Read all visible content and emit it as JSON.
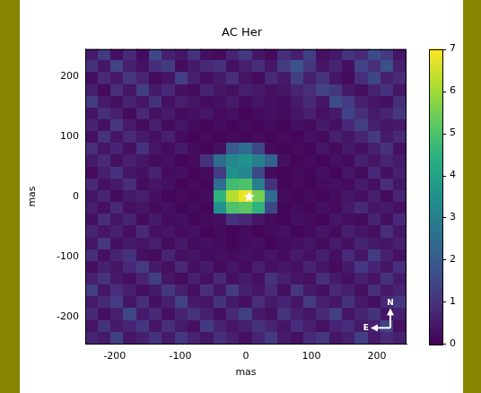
{
  "chart_data": {
    "type": "heatmap",
    "title": "AC Her",
    "x_label": "mas",
    "y_label": "mas",
    "xlim": [
      -245,
      245
    ],
    "ylim": [
      -245,
      245
    ],
    "xticks": [
      -200,
      -100,
      0,
      100,
      200
    ],
    "yticks": [
      -200,
      -100,
      0,
      100,
      200
    ],
    "grid": false,
    "x": [
      -235.2,
      -215.6,
      -196,
      -176.4,
      -156.8,
      -137.2,
      -117.6,
      -98,
      -78.4,
      -58.8,
      -39.2,
      -19.6,
      0,
      19.6,
      39.2,
      58.8,
      78.4,
      98,
      117.6,
      137.2,
      156.8,
      176.4,
      196,
      215.6,
      235.2
    ],
    "y": [
      235.2,
      215.6,
      196,
      176.4,
      156.8,
      137.2,
      117.6,
      98,
      78.4,
      58.8,
      39.2,
      19.6,
      0,
      -19.6,
      -39.2,
      -58.8,
      -78.4,
      -98,
      -117.6,
      -137.2,
      -156.8,
      -176.4,
      -196,
      -215.6,
      -235.2
    ],
    "z": [
      [
        0.5,
        1.2,
        0.3,
        0.8,
        0.2,
        1.5,
        0.6,
        0.4,
        1.0,
        0.3,
        0.2,
        0.7,
        1.1,
        0.4,
        0.2,
        0.9,
        0.6,
        1.3,
        0.3,
        0.5,
        1.0,
        0.8,
        1.6,
        1.2,
        0.4
      ],
      [
        1.0,
        0.4,
        1.4,
        0.6,
        0.3,
        0.9,
        1.2,
        0.2,
        0.5,
        0.8,
        1.0,
        0.3,
        0.6,
        0.9,
        0.4,
        1.2,
        1.8,
        1.1,
        0.4,
        0.7,
        0.3,
        1.4,
        0.9,
        1.7,
        0.6
      ],
      [
        0.3,
        0.8,
        0.5,
        1.1,
        0.7,
        0.2,
        0.4,
        1.3,
        0.6,
        0.3,
        0.5,
        0.9,
        0.4,
        0.2,
        0.8,
        0.5,
        1.3,
        0.6,
        1.0,
        0.4,
        0.2,
        0.9,
        1.5,
        0.6,
        0.8
      ],
      [
        0.6,
        0.2,
        0.9,
        0.4,
        1.3,
        0.5,
        0.8,
        0.3,
        0.2,
        0.7,
        0.4,
        0.3,
        0.6,
        0.5,
        0.3,
        0.4,
        0.7,
        0.9,
        1.4,
        1.1,
        0.5,
        0.3,
        0.7,
        1.0,
        0.4
      ],
      [
        1.2,
        0.5,
        0.3,
        0.7,
        0.4,
        1.0,
        0.3,
        0.6,
        0.4,
        0.2,
        0.3,
        0.5,
        0.2,
        0.4,
        0.3,
        0.2,
        0.5,
        0.8,
        0.4,
        1.6,
        1.2,
        0.6,
        0.4,
        0.3,
        0.9
      ],
      [
        0.4,
        0.9,
        0.6,
        0.2,
        0.8,
        0.3,
        0.5,
        0.2,
        0.3,
        0.4,
        0.2,
        0.3,
        0.1,
        0.2,
        0.3,
        0.2,
        0.4,
        0.6,
        0.3,
        0.5,
        1.4,
        0.9,
        0.5,
        0.7,
        1.1
      ],
      [
        0.7,
        0.3,
        1.1,
        0.5,
        0.2,
        0.6,
        0.2,
        0.4,
        0.2,
        0.1,
        0.2,
        0.1,
        0.2,
        0.1,
        0.2,
        0.1,
        0.3,
        0.2,
        0.5,
        0.3,
        0.8,
        1.3,
        0.6,
        0.4,
        0.5
      ],
      [
        0.3,
        1.0,
        0.4,
        0.8,
        0.5,
        0.3,
        0.6,
        0.2,
        0.1,
        0.2,
        0.1,
        0.2,
        0.1,
        0.2,
        0.1,
        0.2,
        0.1,
        0.3,
        0.2,
        0.6,
        0.4,
        0.7,
        1.2,
        0.5,
        0.8
      ],
      [
        0.9,
        0.4,
        0.7,
        0.3,
        1.0,
        0.4,
        0.2,
        0.5,
        0.2,
        0.1,
        0.3,
        2.0,
        2.5,
        1.5,
        0.2,
        0.1,
        0.2,
        0.1,
        0.4,
        0.2,
        0.5,
        0.3,
        0.6,
        1.0,
        0.3
      ],
      [
        0.5,
        0.8,
        0.3,
        0.6,
        0.4,
        0.2,
        0.3,
        0.1,
        0.2,
        1.0,
        2.5,
        3.2,
        3.5,
        3.0,
        2.2,
        0.3,
        0.1,
        0.2,
        0.1,
        0.3,
        0.2,
        0.6,
        0.4,
        0.7,
        0.5
      ],
      [
        0.2,
        0.6,
        1.0,
        0.4,
        0.3,
        0.7,
        0.2,
        0.3,
        0.1,
        0.2,
        1.2,
        3.5,
        3.2,
        1.5,
        0.2,
        0.1,
        0.2,
        0.1,
        0.3,
        0.1,
        0.4,
        0.2,
        0.8,
        0.3,
        0.6
      ],
      [
        0.8,
        0.3,
        0.5,
        0.9,
        0.2,
        0.4,
        0.3,
        0.1,
        0.2,
        0.1,
        2.5,
        4.8,
        5.0,
        3.0,
        1.0,
        0.1,
        0.2,
        0.1,
        0.2,
        0.3,
        0.2,
        0.5,
        0.3,
        0.9,
        0.4
      ],
      [
        0.4,
        0.7,
        0.2,
        0.5,
        0.6,
        0.3,
        0.1,
        0.2,
        0.1,
        0.2,
        4.5,
        6.2,
        6.8,
        5.5,
        2.5,
        0.2,
        0.1,
        0.2,
        0.1,
        0.2,
        0.4,
        0.3,
        0.6,
        0.2,
        0.7
      ],
      [
        0.6,
        0.3,
        0.8,
        0.3,
        0.4,
        0.2,
        0.3,
        0.1,
        0.2,
        0.1,
        3.5,
        5.0,
        5.2,
        4.5,
        1.5,
        0.1,
        0.2,
        0.1,
        0.3,
        0.2,
        0.5,
        0.8,
        0.4,
        0.5,
        0.3
      ],
      [
        0.3,
        0.9,
        0.4,
        0.7,
        0.2,
        0.5,
        0.2,
        0.3,
        0.1,
        0.2,
        0.3,
        1.0,
        0.8,
        0.4,
        0.2,
        0.1,
        0.3,
        0.2,
        0.1,
        0.4,
        0.3,
        0.2,
        0.7,
        0.3,
        0.8
      ],
      [
        0.7,
        0.4,
        0.6,
        0.3,
        0.8,
        0.3,
        0.4,
        0.2,
        0.3,
        0.1,
        0.2,
        0.1,
        0.2,
        0.1,
        0.2,
        0.3,
        0.1,
        0.2,
        0.4,
        0.2,
        0.6,
        0.4,
        0.3,
        0.9,
        0.4
      ],
      [
        0.4,
        1.1,
        0.3,
        0.5,
        0.4,
        0.6,
        0.2,
        0.5,
        0.2,
        0.3,
        0.2,
        0.1,
        0.2,
        0.3,
        0.1,
        0.2,
        0.3,
        0.4,
        0.2,
        0.5,
        0.3,
        0.7,
        0.5,
        0.4,
        0.6
      ],
      [
        0.9,
        0.3,
        0.7,
        1.0,
        0.3,
        0.2,
        0.7,
        0.3,
        0.4,
        0.2,
        0.3,
        0.2,
        0.3,
        0.2,
        0.4,
        0.2,
        0.5,
        0.3,
        0.6,
        0.3,
        0.8,
        0.4,
        1.2,
        0.6,
        0.3
      ],
      [
        0.3,
        0.6,
        0.4,
        0.8,
        1.2,
        0.5,
        0.3,
        0.8,
        0.3,
        0.5,
        0.2,
        0.4,
        0.2,
        0.6,
        0.3,
        0.4,
        0.3,
        0.7,
        0.4,
        0.2,
        0.5,
        1.1,
        0.7,
        0.4,
        0.9
      ],
      [
        0.6,
        1.0,
        0.5,
        0.3,
        0.7,
        1.3,
        0.4,
        0.2,
        0.6,
        0.3,
        0.8,
        0.3,
        0.5,
        0.3,
        1.0,
        0.6,
        0.4,
        0.3,
        0.9,
        0.5,
        0.3,
        0.6,
        0.4,
        1.0,
        0.5
      ],
      [
        1.3,
        0.4,
        0.9,
        0.6,
        0.3,
        0.5,
        1.1,
        0.6,
        0.3,
        0.9,
        0.4,
        1.2,
        0.6,
        0.4,
        0.8,
        0.3,
        1.1,
        0.5,
        0.3,
        0.8,
        0.6,
        0.3,
        0.9,
        0.5,
        0.7
      ],
      [
        0.5,
        0.8,
        1.2,
        0.4,
        0.9,
        0.3,
        0.6,
        1.4,
        0.5,
        0.4,
        1.0,
        0.5,
        0.3,
        0.9,
        0.5,
        0.7,
        0.4,
        1.2,
        0.6,
        0.4,
        1.0,
        0.5,
        0.3,
        0.8,
        1.1
      ],
      [
        0.8,
        0.3,
        0.6,
        1.5,
        0.5,
        0.8,
        0.3,
        0.7,
        1.0,
        0.6,
        0.3,
        0.8,
        1.3,
        0.5,
        0.3,
        1.0,
        0.6,
        0.4,
        0.8,
        1.3,
        0.4,
        0.7,
        1.0,
        0.4,
        0.6
      ],
      [
        0.4,
        1.0,
        0.5,
        0.7,
        1.1,
        0.4,
        0.9,
        0.5,
        0.3,
        1.2,
        0.7,
        0.4,
        0.6,
        1.0,
        0.7,
        0.4,
        0.9,
        0.6,
        0.3,
        0.7,
        0.9,
        0.5,
        0.6,
        1.4,
        0.3
      ],
      [
        0.7,
        0.5,
        1.3,
        0.4,
        0.6,
        1.0,
        0.5,
        1.1,
        0.7,
        0.4,
        0.9,
        0.6,
        0.3,
        0.7,
        1.2,
        0.5,
        0.3,
        0.8,
        1.1,
        0.4,
        0.6,
        1.3,
        0.5,
        0.8,
        0.6
      ]
    ],
    "colorbar": {
      "range": [
        0,
        7
      ],
      "ticks": [
        0,
        1,
        2,
        3,
        4,
        5,
        6,
        7
      ]
    },
    "markers": [
      {
        "x": 5,
        "y": 0,
        "marker": "star",
        "color": "#ffffff"
      }
    ],
    "compass": {
      "north": "N",
      "east": "E"
    }
  }
}
